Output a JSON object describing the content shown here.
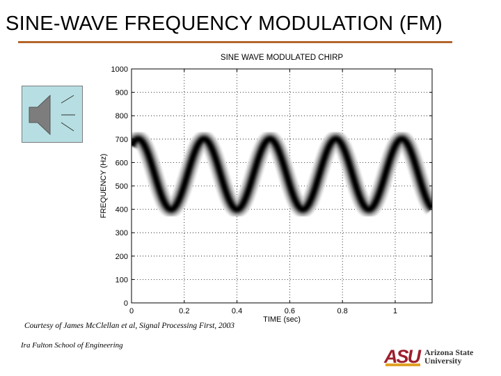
{
  "slide": {
    "title": "SINE-WAVE FREQUENCY MODULATION (FM)",
    "credit": "Courtesy of James McClellan et al, Signal Processing First, 2003",
    "footer": "Ira Fulton School of Engineering",
    "logo_mark": "ASU",
    "logo_line1": "Arizona State",
    "logo_line2": "University",
    "speaker_icon": "speaker-icon",
    "accent_color": "#b4642a"
  },
  "chart_data": {
    "type": "heatmap",
    "title": "SINE WAVE MODULATED CHIRP",
    "xlabel": "TIME (sec)",
    "ylabel": "FREQUENCY (Hz)",
    "xlim": [
      0,
      1.14
    ],
    "ylim": [
      0,
      1000
    ],
    "xticks": [
      0,
      0.2,
      0.4,
      0.6,
      0.8,
      1
    ],
    "xtick_labels": [
      "0",
      "0.2",
      "0.4",
      "0.6",
      "0.8",
      "1"
    ],
    "yticks": [
      0,
      100,
      200,
      300,
      400,
      500,
      600,
      700,
      800,
      900,
      1000
    ],
    "ytick_labels": [
      "0",
      "100",
      "200",
      "300",
      "400",
      "500",
      "600",
      "700",
      "800",
      "900",
      "1000"
    ],
    "grid": true,
    "signal": {
      "center_hz": 550,
      "deviation_hz": 150,
      "modulation_hz": 4,
      "peaks_sec": [
        0.025,
        0.275,
        0.525,
        0.775,
        1.025
      ],
      "troughs_sec": [
        0.15,
        0.4,
        0.65,
        0.9,
        1.14
      ]
    }
  }
}
